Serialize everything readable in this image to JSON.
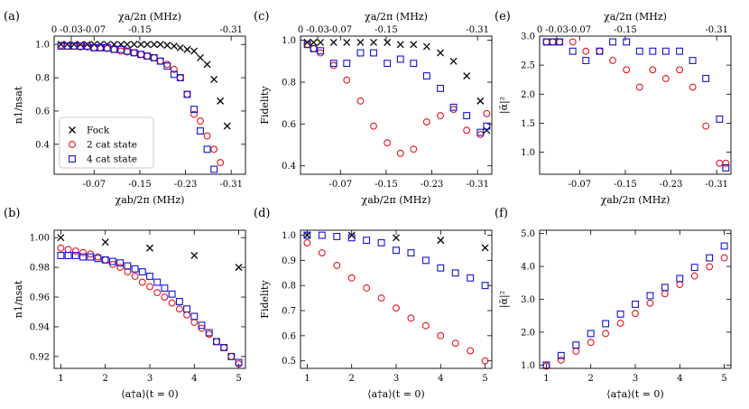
{
  "colors": {
    "fock": "#000000",
    "cat2": "#e8141c",
    "cat4": "#1414d2"
  },
  "legend": {
    "fock": "Fock",
    "cat2": "2 cat state",
    "cat4": "4 cat state"
  },
  "chart_data": [
    {
      "id": "a",
      "panel_label": "(a)",
      "type": "scatter",
      "xlabel": "χab/2π (MHz)",
      "ylabel": "n1/nsat",
      "xlim": [
        0,
        -0.335
      ],
      "ylim": [
        0.22,
        1.05
      ],
      "xticks": [
        -0.07,
        -0.15,
        -0.23,
        -0.31
      ],
      "xtick_labels": [
        "-0.07",
        "-0.15",
        "-0.23",
        "-0.31"
      ],
      "yticks": [
        0.4,
        0.6,
        0.8,
        1.0
      ],
      "ytick_labels": [
        "0.4",
        "0.6",
        "0.8",
        "1.0"
      ],
      "top_axis": {
        "label": "χa/2π (MHz)",
        "ticks": [
          0,
          -0.03,
          -0.07,
          -0.15,
          -0.31
        ],
        "tick_labels": [
          "0",
          "-0.03",
          "-0.07",
          "-0.15",
          "-0.31"
        ]
      },
      "series": [
        {
          "name": "Fock",
          "marker": "x",
          "x": [
            -0.012,
            -0.023,
            -0.035,
            -0.046,
            -0.058,
            -0.07,
            -0.081,
            -0.093,
            -0.105,
            -0.117,
            -0.128,
            -0.14,
            -0.152,
            -0.163,
            -0.175,
            -0.186,
            -0.198,
            -0.21,
            -0.221,
            -0.233,
            -0.245,
            -0.256,
            -0.268,
            -0.28,
            -0.291,
            -0.303,
            -0.315,
            -0.326
          ],
          "y": [
            1.0,
            1.0,
            1.0,
            1.0,
            1.0,
            1.0,
            1.0,
            1.0,
            1.0,
            1.0,
            1.0,
            1.0,
            1.0,
            1.0,
            1.0,
            1.0,
            0.995,
            0.99,
            0.98,
            0.97,
            0.96,
            0.92,
            0.88,
            0.79,
            0.66,
            0.51,
            null,
            null
          ]
        },
        {
          "name": "2 cat state",
          "marker": "o",
          "x": [
            -0.012,
            -0.023,
            -0.035,
            -0.046,
            -0.058,
            -0.07,
            -0.081,
            -0.093,
            -0.105,
            -0.117,
            -0.128,
            -0.14,
            -0.152,
            -0.163,
            -0.175,
            -0.186,
            -0.198,
            -0.21,
            -0.221,
            -0.233,
            -0.245,
            -0.256,
            -0.268,
            -0.28,
            -0.291,
            -0.303,
            -0.315,
            -0.326
          ],
          "y": [
            0.995,
            0.99,
            0.99,
            0.985,
            0.985,
            0.98,
            0.98,
            0.975,
            0.97,
            0.96,
            0.955,
            0.95,
            0.94,
            0.93,
            0.92,
            0.9,
            0.88,
            0.85,
            0.8,
            0.7,
            0.58,
            0.54,
            0.45,
            0.37,
            0.29,
            null,
            null,
            null
          ]
        },
        {
          "name": "4 cat state",
          "marker": "s",
          "x": [
            -0.012,
            -0.023,
            -0.035,
            -0.046,
            -0.058,
            -0.07,
            -0.081,
            -0.093,
            -0.105,
            -0.117,
            -0.128,
            -0.14,
            -0.152,
            -0.163,
            -0.175,
            -0.186,
            -0.198,
            -0.21,
            -0.221,
            -0.233,
            -0.245,
            -0.256,
            -0.268,
            -0.28,
            -0.291,
            -0.303,
            -0.315,
            -0.326
          ],
          "y": [
            0.99,
            0.99,
            0.99,
            0.99,
            0.99,
            0.98,
            0.98,
            0.98,
            0.97,
            0.97,
            0.96,
            0.95,
            0.94,
            0.93,
            0.92,
            0.9,
            0.87,
            0.82,
            0.8,
            0.7,
            0.61,
            0.48,
            0.37,
            0.25,
            null,
            null,
            null,
            null
          ]
        }
      ]
    },
    {
      "id": "c",
      "panel_label": "(c)",
      "type": "scatter",
      "xlabel": "χab/2π (MHz)",
      "ylabel": "Fidelity",
      "xlim": [
        0,
        -0.335
      ],
      "ylim": [
        0.36,
        1.02
      ],
      "xticks": [
        -0.07,
        -0.15,
        -0.23,
        -0.31
      ],
      "xtick_labels": [
        "-0.07",
        "-0.15",
        "-0.23",
        "-0.31"
      ],
      "yticks": [
        0.4,
        0.6,
        0.8,
        1.0
      ],
      "ytick_labels": [
        "0.4",
        "0.6",
        "0.8",
        "1.0"
      ],
      "top_axis": {
        "label": "χa/2π (MHz)",
        "ticks": [
          0,
          -0.03,
          -0.07,
          -0.15,
          -0.31
        ],
        "tick_labels": [
          "0",
          "-0.03",
          "-0.07",
          "-0.15",
          "-0.31"
        ]
      },
      "series": [
        {
          "name": "Fock",
          "marker": "x",
          "x": [
            -0.012,
            -0.023,
            -0.035,
            -0.058,
            -0.081,
            -0.105,
            -0.128,
            -0.152,
            -0.175,
            -0.198,
            -0.221,
            -0.245,
            -0.268,
            -0.291,
            -0.315,
            -0.326
          ],
          "y": [
            0.99,
            0.99,
            0.99,
            0.99,
            0.99,
            0.99,
            0.99,
            0.99,
            0.98,
            0.98,
            0.97,
            0.94,
            0.9,
            0.83,
            0.71,
            0.57
          ]
        },
        {
          "name": "2 cat state",
          "marker": "o",
          "x": [
            -0.012,
            -0.023,
            -0.035,
            -0.058,
            -0.081,
            -0.105,
            -0.128,
            -0.152,
            -0.175,
            -0.198,
            -0.221,
            -0.245,
            -0.268,
            -0.291,
            -0.315,
            -0.326
          ],
          "y": [
            0.98,
            0.96,
            0.94,
            0.88,
            0.81,
            0.71,
            0.59,
            0.51,
            0.46,
            0.48,
            0.61,
            0.64,
            0.67,
            0.57,
            0.55,
            0.65
          ]
        },
        {
          "name": "4 cat state",
          "marker": "s",
          "x": [
            -0.012,
            -0.023,
            -0.035,
            -0.058,
            -0.081,
            -0.105,
            -0.128,
            -0.152,
            -0.175,
            -0.198,
            -0.221,
            -0.245,
            -0.268,
            -0.291,
            -0.315,
            -0.326
          ],
          "y": [
            0.98,
            0.96,
            0.95,
            0.89,
            0.89,
            0.94,
            0.94,
            0.89,
            0.91,
            0.89,
            0.83,
            0.77,
            0.68,
            0.64,
            0.56,
            0.59
          ]
        }
      ]
    },
    {
      "id": "e",
      "panel_label": "(e)",
      "type": "scatter",
      "xlabel": "χab/2π (MHz)",
      "ylabel": "|ᾱ|²",
      "xlim": [
        0,
        -0.335
      ],
      "ylim": [
        0.62,
        3.0
      ],
      "xticks": [
        -0.07,
        -0.15,
        -0.23,
        -0.31
      ],
      "xtick_labels": [
        "-0.07",
        "-0.15",
        "-0.23",
        "-0.31"
      ],
      "yticks": [
        1.0,
        1.5,
        2.0,
        2.5,
        3.0
      ],
      "ytick_labels": [
        "1.0",
        "1.5",
        "2.0",
        "2.5",
        "3.0"
      ],
      "top_axis": {
        "label": "χa/2π (MHz)",
        "ticks": [
          0,
          -0.03,
          -0.07,
          -0.15,
          -0.31
        ],
        "tick_labels": [
          "0",
          "-0.03",
          "-0.07",
          "-0.15",
          "-0.31"
        ]
      },
      "series": [
        {
          "name": "2 cat state",
          "marker": "o",
          "x": [
            -0.012,
            -0.023,
            -0.035,
            -0.058,
            -0.081,
            -0.105,
            -0.128,
            -0.152,
            -0.175,
            -0.198,
            -0.221,
            -0.245,
            -0.268,
            -0.291,
            -0.315,
            -0.326
          ],
          "y": [
            2.9,
            2.9,
            2.9,
            2.9,
            2.74,
            2.74,
            2.58,
            2.42,
            2.12,
            2.42,
            2.27,
            2.42,
            2.12,
            1.45,
            0.81,
            0.81
          ]
        },
        {
          "name": "4 cat state",
          "marker": "s",
          "x": [
            -0.012,
            -0.023,
            -0.035,
            -0.058,
            -0.081,
            -0.105,
            -0.128,
            -0.152,
            -0.175,
            -0.198,
            -0.221,
            -0.245,
            -0.268,
            -0.291,
            -0.315,
            -0.326
          ],
          "y": [
            2.9,
            2.9,
            2.9,
            2.74,
            2.58,
            2.74,
            2.9,
            2.9,
            2.74,
            2.74,
            2.74,
            2.74,
            2.58,
            2.27,
            1.57,
            0.73
          ]
        }
      ]
    },
    {
      "id": "b",
      "panel_label": "(b)",
      "type": "scatter",
      "xlabel": "⟨a†a⟩(t = 0)",
      "ylabel": "n1/nsat",
      "xlim": [
        0.85,
        5.15
      ],
      "ylim": [
        0.912,
        1.005
      ],
      "xticks": [
        1,
        2,
        3,
        4,
        5
      ],
      "xtick_labels": [
        "1",
        "2",
        "3",
        "4",
        "5"
      ],
      "yticks": [
        0.92,
        0.94,
        0.96,
        0.98,
        1.0
      ],
      "ytick_labels": [
        "0.92",
        "0.94",
        "0.96",
        "0.98",
        "1.00"
      ],
      "series": [
        {
          "name": "Fock",
          "marker": "x",
          "x": [
            1,
            2,
            3,
            4,
            5
          ],
          "y": [
            1.0,
            0.997,
            0.993,
            0.988,
            0.98
          ]
        },
        {
          "name": "2 cat state",
          "marker": "o",
          "x": [
            1.0,
            1.167,
            1.333,
            1.5,
            1.667,
            1.833,
            2.0,
            2.167,
            2.333,
            2.5,
            2.667,
            2.833,
            3.0,
            3.167,
            3.333,
            3.5,
            3.667,
            3.833,
            4.0,
            4.167,
            4.333,
            4.5,
            4.667,
            4.833,
            5.0
          ],
          "y": [
            0.993,
            0.992,
            0.991,
            0.99,
            0.989,
            0.987,
            0.985,
            0.982,
            0.98,
            0.977,
            0.974,
            0.97,
            0.967,
            0.963,
            0.96,
            0.956,
            0.952,
            0.948,
            0.943,
            0.939,
            0.935,
            0.93,
            0.926,
            0.92,
            0.915
          ]
        },
        {
          "name": "4 cat state",
          "marker": "s",
          "x": [
            1.0,
            1.167,
            1.333,
            1.5,
            1.667,
            1.833,
            2.0,
            2.167,
            2.333,
            2.5,
            2.667,
            2.833,
            3.0,
            3.167,
            3.333,
            3.5,
            3.667,
            3.833,
            4.0,
            4.167,
            4.333,
            4.5,
            4.667,
            4.833,
            5.0
          ],
          "y": [
            0.988,
            0.988,
            0.988,
            0.987,
            0.987,
            0.986,
            0.985,
            0.984,
            0.983,
            0.981,
            0.979,
            0.977,
            0.974,
            0.97,
            0.966,
            0.962,
            0.957,
            0.952,
            0.947,
            0.941,
            0.936,
            0.93,
            0.926,
            0.92,
            0.916
          ]
        }
      ]
    },
    {
      "id": "d",
      "panel_label": "(d)",
      "type": "scatter",
      "xlabel": "⟨a†a⟩(t = 0)",
      "ylabel": "Fidelity",
      "xlim": [
        0.85,
        5.15
      ],
      "ylim": [
        0.47,
        1.02
      ],
      "xticks": [
        1,
        2,
        3,
        4,
        5
      ],
      "xtick_labels": [
        "1",
        "2",
        "3",
        "4",
        "5"
      ],
      "yticks": [
        0.5,
        0.6,
        0.7,
        0.8,
        0.9,
        1.0
      ],
      "ytick_labels": [
        "0.5",
        "0.6",
        "0.7",
        "0.8",
        "0.9",
        "1.0"
      ],
      "series": [
        {
          "name": "Fock",
          "marker": "x",
          "x": [
            1,
            2,
            3,
            4,
            5
          ],
          "y": [
            1.0,
            1.0,
            0.99,
            0.98,
            0.95
          ]
        },
        {
          "name": "2 cat state",
          "marker": "o",
          "x": [
            1.0,
            1.333,
            1.667,
            2.0,
            2.333,
            2.667,
            3.0,
            3.333,
            3.667,
            4.0,
            4.333,
            4.667,
            5.0
          ],
          "y": [
            0.97,
            0.93,
            0.88,
            0.83,
            0.79,
            0.75,
            0.71,
            0.67,
            0.64,
            0.6,
            0.57,
            0.54,
            0.5
          ]
        },
        {
          "name": "4 cat state",
          "marker": "s",
          "x": [
            1.0,
            1.333,
            1.667,
            2.0,
            2.333,
            2.667,
            3.0,
            3.333,
            3.667,
            4.0,
            4.333,
            4.667,
            5.0
          ],
          "y": [
            1.0,
            1.0,
            0.995,
            0.99,
            0.98,
            0.97,
            0.94,
            0.93,
            0.9,
            0.87,
            0.85,
            0.83,
            0.8
          ]
        }
      ]
    },
    {
      "id": "f",
      "panel_label": "(f)",
      "type": "scatter",
      "xlabel": "⟨a†a⟩(t = 0)",
      "ylabel": "|ᾱ|²",
      "xlim": [
        0.85,
        5.15
      ],
      "ylim": [
        0.9,
        5.1
      ],
      "xticks": [
        1,
        2,
        3,
        4,
        5
      ],
      "xtick_labels": [
        "1",
        "2",
        "3",
        "4",
        "5"
      ],
      "yticks": [
        1.0,
        2.0,
        3.0,
        4.0,
        5.0
      ],
      "ytick_labels": [
        "1.0",
        "2.0",
        "3.0",
        "4.0",
        "5.0"
      ],
      "series": [
        {
          "name": "2 cat state",
          "marker": "o",
          "x": [
            1.0,
            1.333,
            1.667,
            2.0,
            2.333,
            2.667,
            3.0,
            3.333,
            3.667,
            4.0,
            4.333,
            4.667,
            5.0
          ],
          "y": [
            0.97,
            1.15,
            1.42,
            1.69,
            1.96,
            2.27,
            2.57,
            2.88,
            3.17,
            3.45,
            3.71,
            3.99,
            4.26
          ]
        },
        {
          "name": "4 cat state",
          "marker": "s",
          "x": [
            1.0,
            1.333,
            1.667,
            2.0,
            2.333,
            2.667,
            3.0,
            3.333,
            3.667,
            4.0,
            4.333,
            4.667,
            5.0
          ],
          "y": [
            1.0,
            1.29,
            1.61,
            1.96,
            2.26,
            2.55,
            2.85,
            3.11,
            3.36,
            3.63,
            3.97,
            4.26,
            4.62
          ]
        }
      ]
    }
  ]
}
